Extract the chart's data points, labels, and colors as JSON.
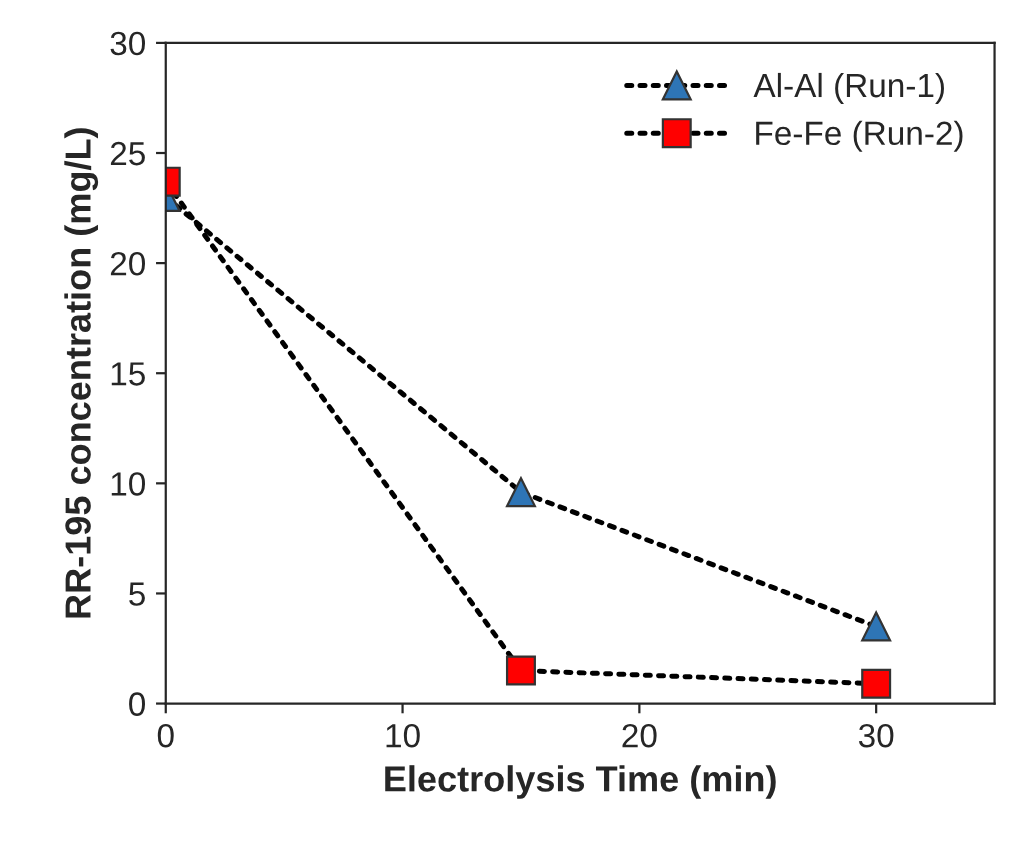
{
  "chart_data": {
    "type": "line",
    "xlabel": "Electrolysis Time (min)",
    "ylabel": "RR-195 concentration (mg/L)",
    "x": [
      0,
      15,
      30
    ],
    "series": [
      {
        "name": "Al-Al (Run-1)",
        "color": "#2e75b6",
        "marker": "triangle",
        "values": [
          23,
          9.6,
          3.5
        ]
      },
      {
        "name": "Fe-Fe (Run-2)",
        "color": "#ff0000",
        "marker": "square",
        "values": [
          23.7,
          1.5,
          0.9
        ]
      }
    ],
    "xlim": [
      0,
      35
    ],
    "xticks": [
      0,
      10,
      20,
      30
    ],
    "ylim": [
      0,
      30
    ],
    "yticks": [
      0,
      5,
      10,
      15,
      20,
      25,
      30
    ],
    "grid": false,
    "legend": "top right",
    "line_style": "dotted"
  }
}
